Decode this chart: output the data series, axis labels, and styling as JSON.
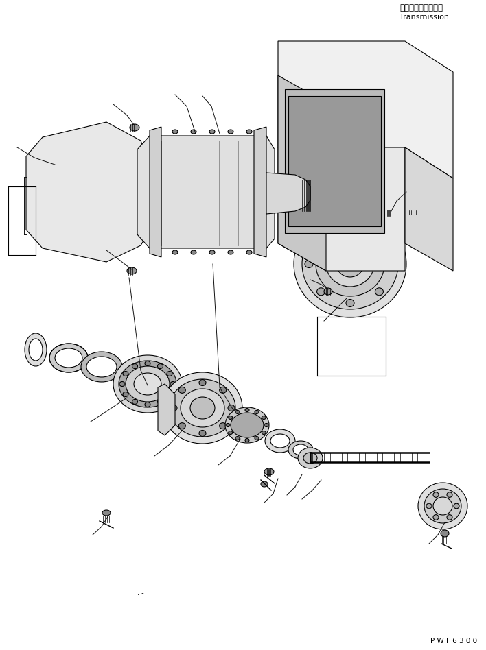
{
  "title_jp": "トランスミッション",
  "title_en": "Transmission",
  "part_code": "P W F 6 3 0 0",
  "bg_color": "#ffffff",
  "line_color": "#000000",
  "line_width": 0.8,
  "fig_width": 7.08,
  "fig_height": 9.48
}
